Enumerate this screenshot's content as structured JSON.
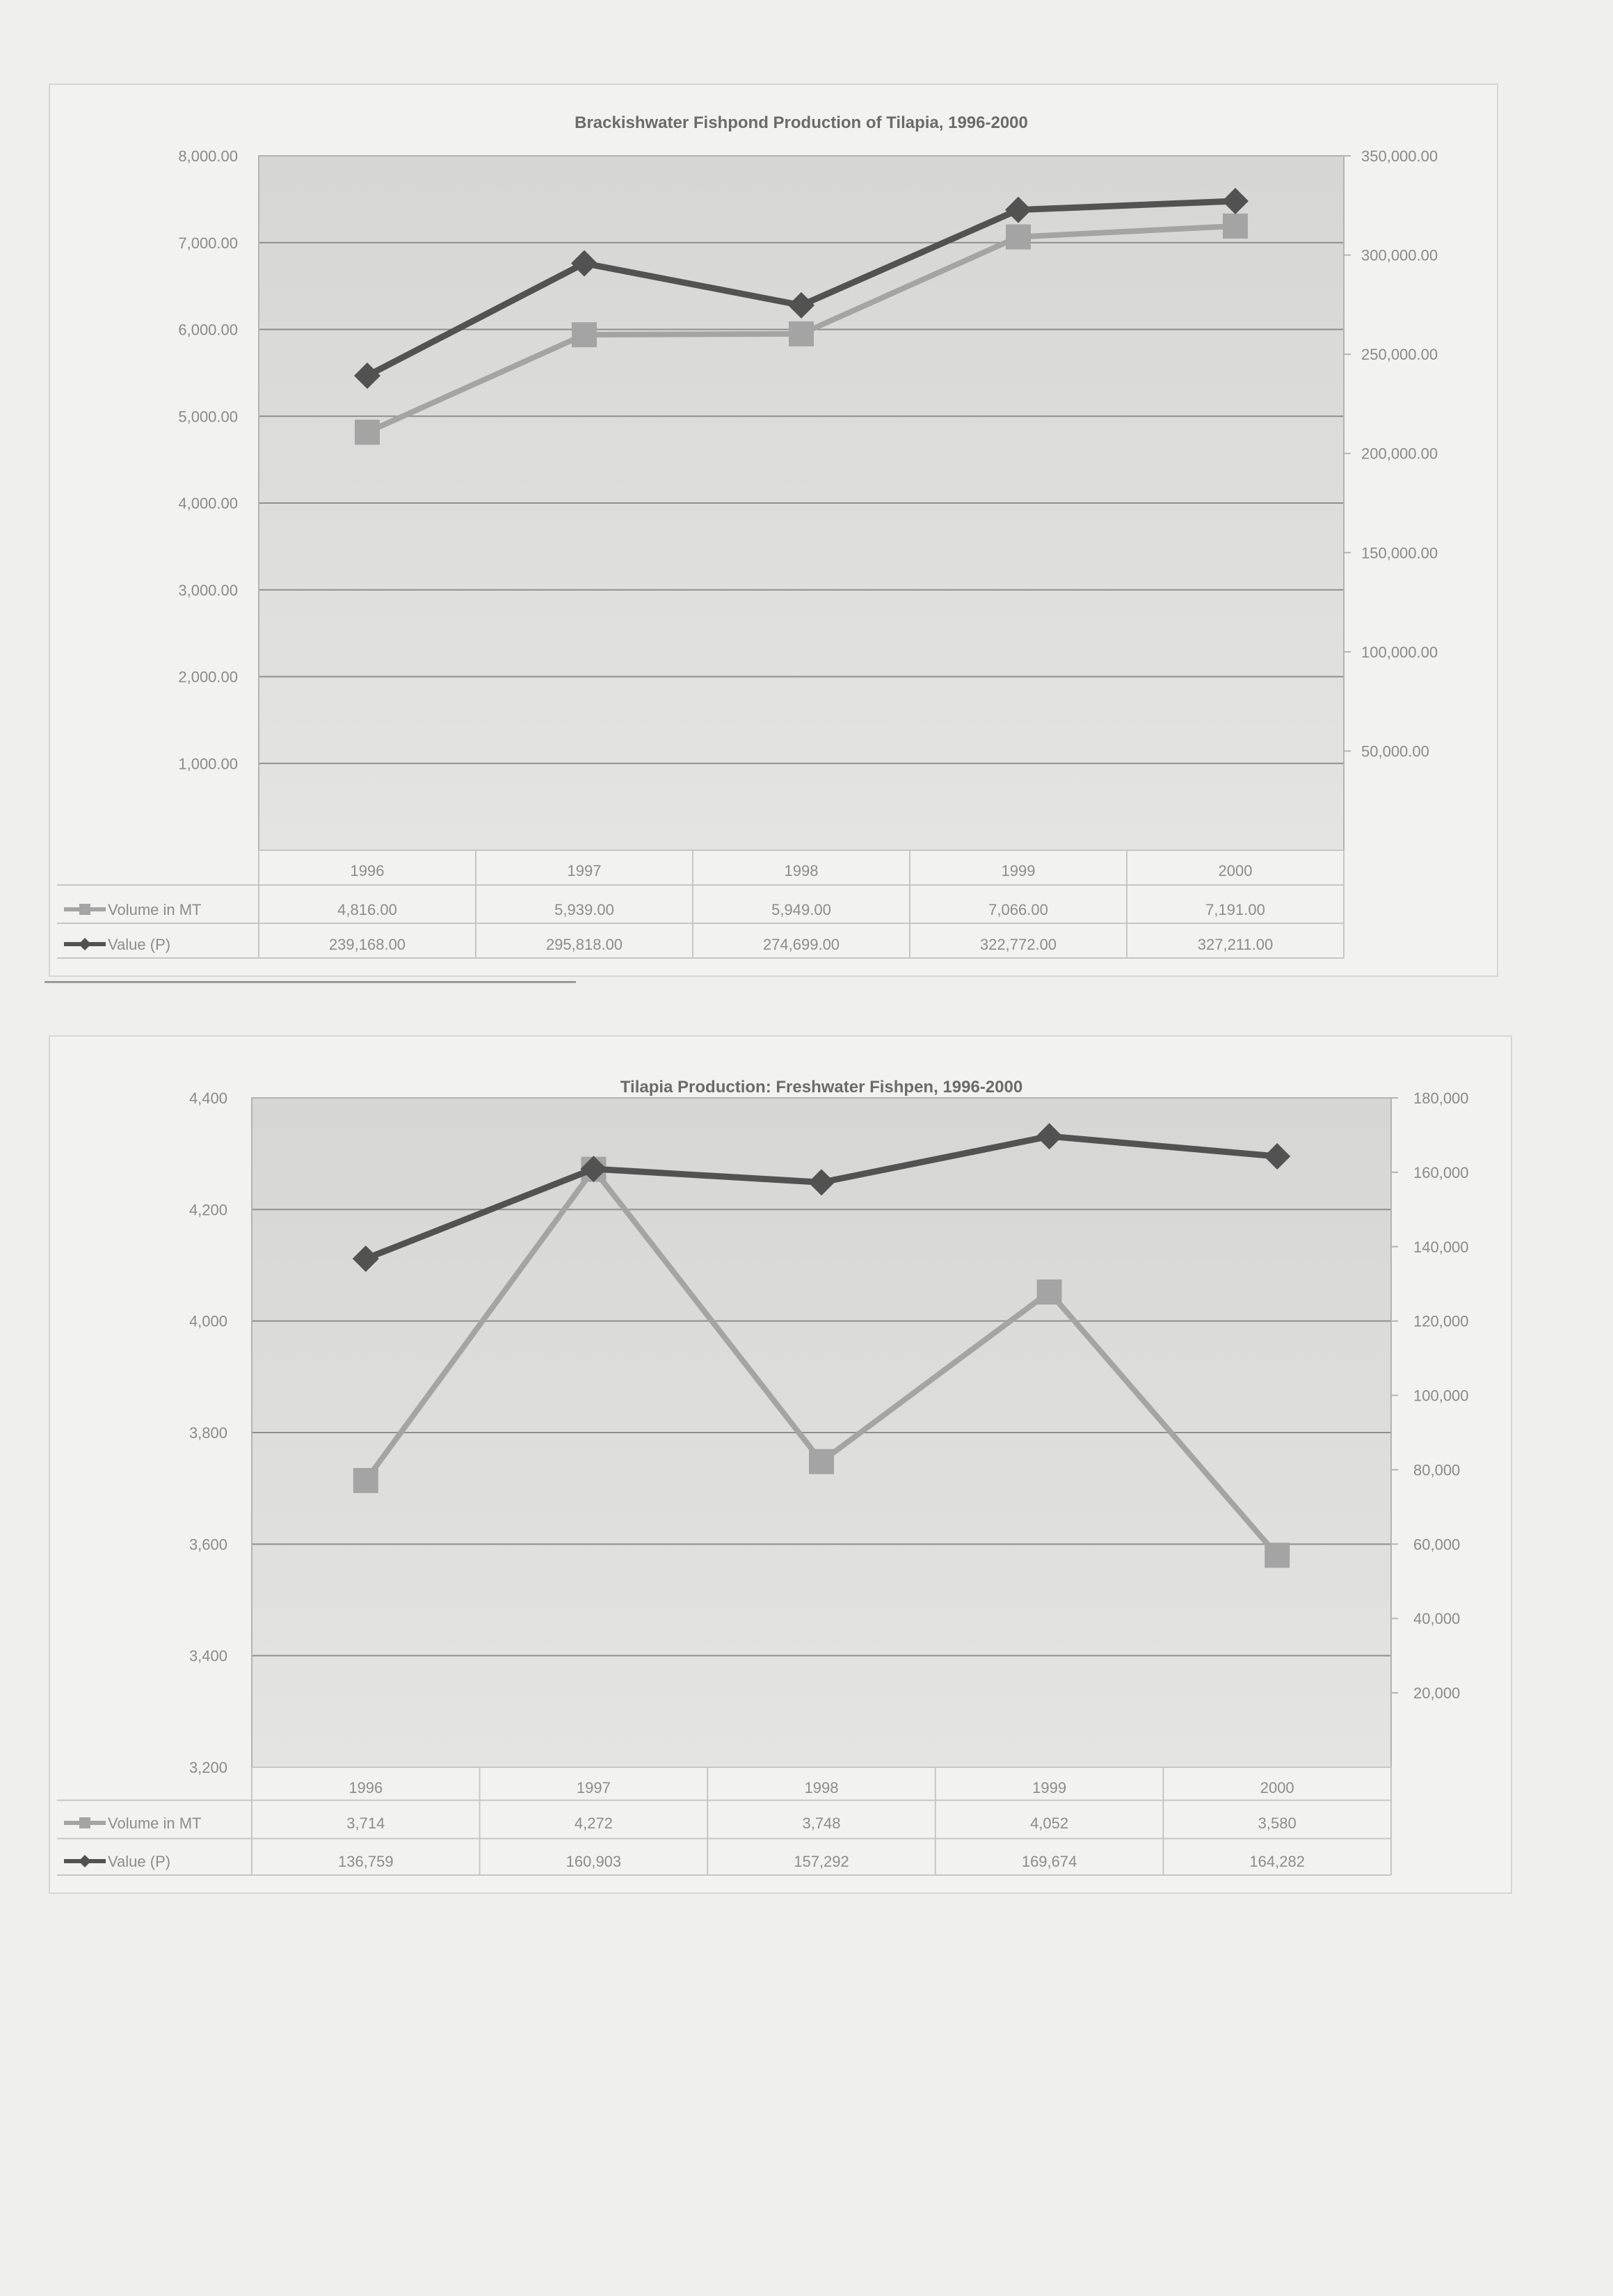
{
  "chart_data": [
    {
      "type": "line",
      "title": "Brackishwater Fishpond Production of Tilapia, 1996-2000",
      "categories": [
        "1996",
        "1997",
        "1998",
        "1999",
        "2000"
      ],
      "y_left": {
        "ylim": [
          0,
          8000
        ],
        "ticks": [
          "1,000.00",
          "2,000.00",
          "3,000.00",
          "4,000.00",
          "5,000.00",
          "6,000.00",
          "7,000.00",
          "8,000.00"
        ],
        "tick_values": [
          1000,
          2000,
          3000,
          4000,
          5000,
          6000,
          7000,
          8000
        ]
      },
      "y_right": {
        "ylim": [
          0,
          350000
        ],
        "ticks": [
          "50,000.00",
          "100,000.00",
          "150,000.00",
          "200,000.00",
          "250,000.00",
          "300,000.00",
          "350,000.00"
        ],
        "tick_values": [
          50000,
          100000,
          150000,
          200000,
          250000,
          300000,
          350000
        ]
      },
      "series": [
        {
          "name": "Volume in MT",
          "axis": "left",
          "marker": "square",
          "color": "#a4a4a4",
          "values": [
            4816,
            5939,
            5949,
            7066,
            7191
          ],
          "labels": [
            "4,816.00",
            "5,939.00",
            "5,949.00",
            "7,066.00",
            "7,191.00"
          ]
        },
        {
          "name": "Value (P)",
          "axis": "right",
          "marker": "diamond",
          "color": "#525252",
          "values": [
            239168,
            295818,
            274699,
            322772,
            327211
          ],
          "labels": [
            "239,168.00",
            "295,818.00",
            "274,699.00",
            "322,772.00",
            "327,211.00"
          ]
        }
      ],
      "grid": true,
      "legend": "data-table"
    },
    {
      "type": "line",
      "title": "Tilapia Production:  Freshwater Fishpen, 1996-2000",
      "categories": [
        "1996",
        "1997",
        "1998",
        "1999",
        "2000"
      ],
      "y_left": {
        "ylim": [
          3200,
          4400
        ],
        "ticks": [
          "3,200",
          "3,400",
          "3,600",
          "3,800",
          "4,000",
          "4,200",
          "4,400"
        ],
        "tick_values": [
          3200,
          3400,
          3600,
          3800,
          4000,
          4200,
          4400
        ]
      },
      "y_right": {
        "ylim": [
          0,
          180000
        ],
        "ticks": [
          "20,000",
          "40,000",
          "60,000",
          "80,000",
          "100,000",
          "120,000",
          "140,000",
          "160,000",
          "180,000"
        ],
        "tick_values": [
          20000,
          40000,
          60000,
          80000,
          100000,
          120000,
          140000,
          160000,
          180000
        ]
      },
      "series": [
        {
          "name": "Volume in MT",
          "axis": "left",
          "marker": "square",
          "color": "#a4a4a4",
          "values": [
            3714,
            4272,
            3748,
            4052,
            3580
          ],
          "labels": [
            "3,714",
            "4,272",
            "3,748",
            "4,052",
            "3,580"
          ]
        },
        {
          "name": "Value (P)",
          "axis": "right",
          "marker": "diamond",
          "color": "#525252",
          "values": [
            136759,
            160903,
            157292,
            169674,
            164282
          ],
          "labels": [
            "136,759",
            "160,903",
            "157,292",
            "169,674",
            "164,282"
          ]
        }
      ],
      "grid": true,
      "legend": "data-table"
    }
  ]
}
